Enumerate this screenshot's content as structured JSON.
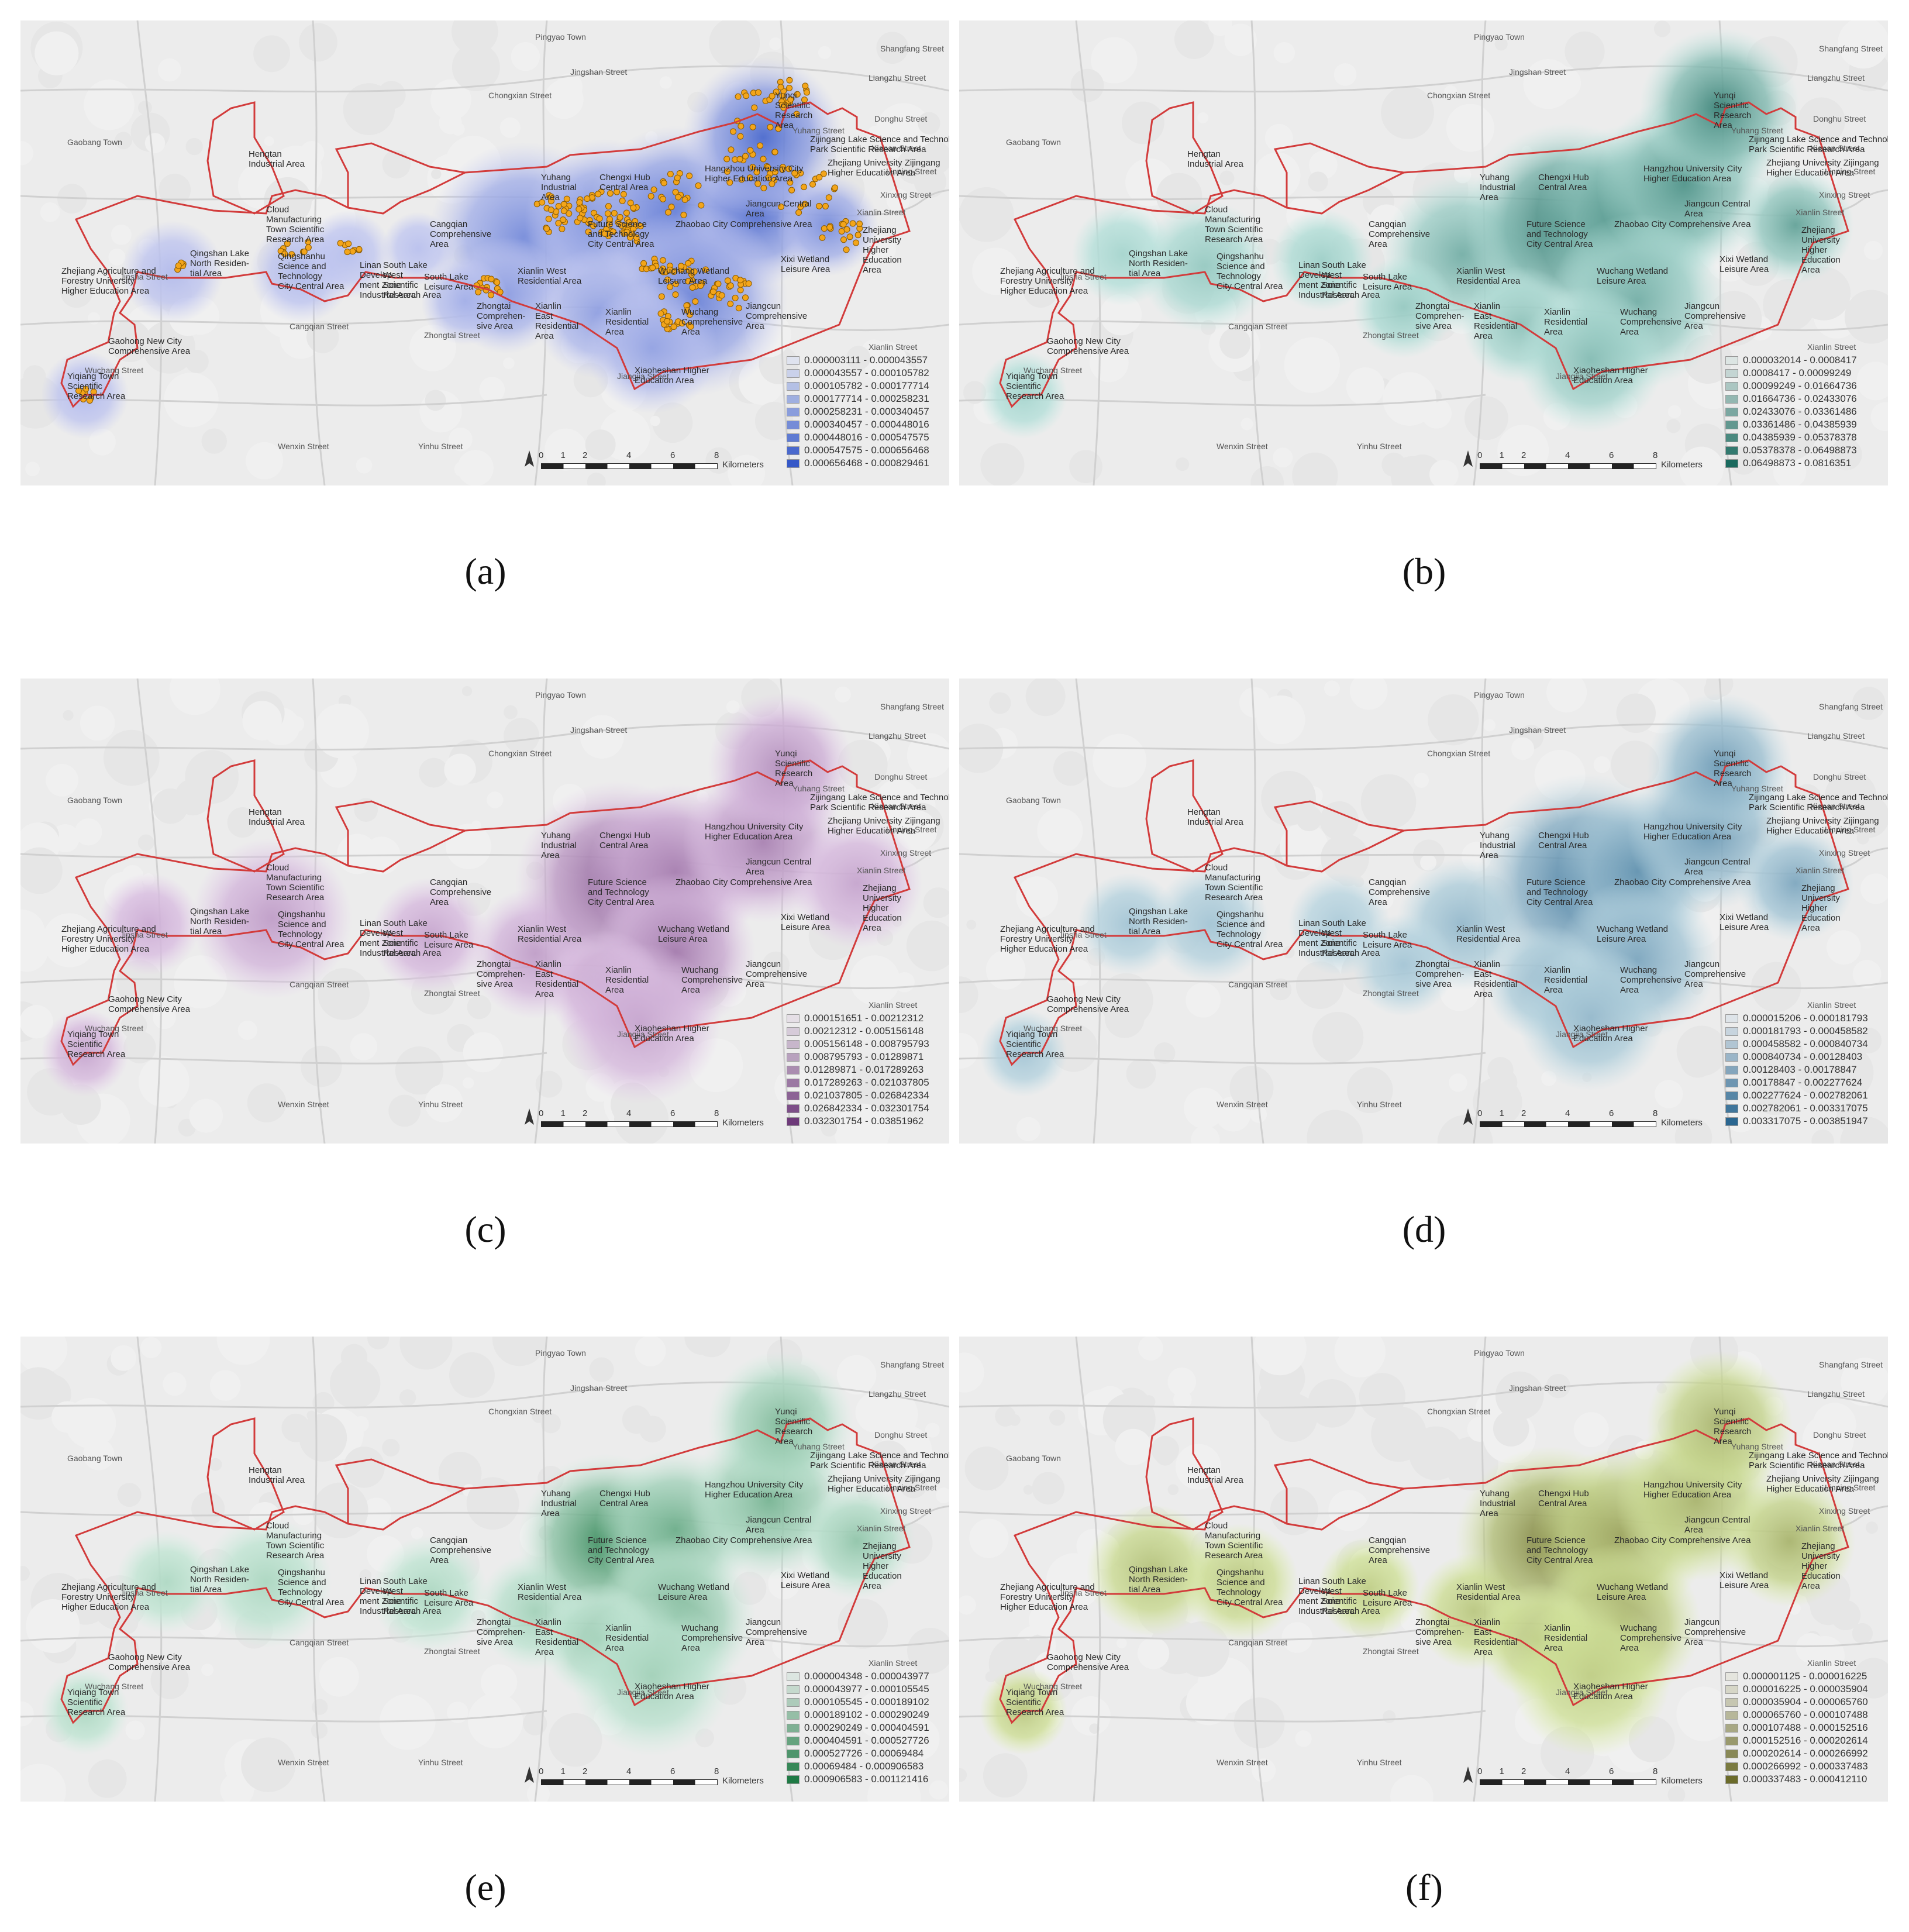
{
  "captions": [
    "(a)",
    "(b)",
    "(c)",
    "(d)",
    "(e)",
    "(f)"
  ],
  "scale_bar": {
    "ticks": [
      "0",
      "1",
      "2",
      "4",
      "6",
      "8"
    ],
    "unit": "Kilometers"
  },
  "place_names": [
    "Pingyao Town",
    "Jingshan Street",
    "Shangfang Street",
    "Gaobang Town",
    "Xianlin Street",
    "Zhongtai Street",
    "Yinhu Street",
    "Xianlin Street",
    "Chongxian Street",
    "Donghu Street",
    "Jinsha Street",
    "Liangzhu Street",
    "Wuchang Street",
    "Cangqian Street",
    "Xianan Street",
    "Jiangjia Street",
    "Xinxing Street",
    "Yuhang Street",
    "Linping Street",
    "Wenxin Street"
  ],
  "area_labels": [
    "Zhejiang Agriculture and\nForestry University\nHigher Education Area",
    "Qingshan Lake\nNorth Residen-\ntial Area",
    "Cloud\nManufacturing\nTown Scientific\nResearch Area",
    "Qingshanhu\nScience and\nTechnology\nCity Central Area",
    "Linan\nDevelop-\nment Zone\nIndustrial Area",
    "Yiqiang Town\nScientific\nResearch Area",
    "Gaohong New City\nComprehensive Area",
    "Hengtan\nIndustrial Area",
    "South Lake\nWest\nScientific\nResearch Area",
    "South Lake\nLeisure Area",
    "Zhongtai\nComprehen-\nsive Area",
    "Cangqian\nComprehensive\nArea",
    "Yuhang\nIndustrial\nArea",
    "Chengxi Hub\nCentral Area",
    "Future Science\nand Technology\nCity Central Area",
    "Zhaobao City Comprehensive Area",
    "Xianlin West\nResidential Area",
    "Xianlin\nEast\nResidential\nArea",
    "Xianlin\nResidential\nArea",
    "Wuchang Wetland\nLeisure Area",
    "Wuchang\nComprehensive\nArea",
    "Jiangcun\nComprehensive\nArea",
    "Xixi Wetland\nLeisure Area",
    "Xiaoheshan Higher\nEducation Area",
    "Hangzhou University City\nHigher Education Area",
    "Jiangcun Central\nArea",
    "Yunqi\nScientific\nResearch\nArea",
    "Zijingang Lake Science and Technology\nPark Scientific Research Area",
    "Zhejiang University Zijingang\nHigher Education Area",
    "Zhejiang\nUniversity\nHigher\nEducation\nArea"
  ],
  "panels": [
    {
      "id": "a",
      "colors": {
        "fill": "#3558c8",
        "halo": "#c9cdf2",
        "poi": "#f3a51a"
      },
      "show_points": true,
      "legend": [
        "0.000003111 - 0.000043557",
        "0.000043557 - 0.000105782",
        "0.000105782 - 0.000177714",
        "0.000177714 - 0.000258231",
        "0.000258231 - 0.000340457",
        "0.000340457 - 0.000448016",
        "0.000448016 - 0.000547575",
        "0.000547575 - 0.000656468",
        "0.000656468 - 0.000829461"
      ]
    },
    {
      "id": "b",
      "colors": {
        "fill": "#1a6a5e",
        "halo": "#bfe8e2"
      },
      "show_points": false,
      "legend": [
        "0.000032014 - 0.0008417",
        "0.0008417 - 0.00099249",
        "0.00099249 - 0.01664736",
        "0.01664736 - 0.02433076",
        "0.02433076 - 0.03361486",
        "0.03361486 - 0.04385939",
        "0.04385939 - 0.05378378",
        "0.05378378 - 0.06498873",
        "0.06498873 - 0.0816351"
      ]
    },
    {
      "id": "c",
      "colors": {
        "fill": "#6e3a7a",
        "halo": "#e3c9ea"
      },
      "show_points": false,
      "legend": [
        "0.000151651 - 0.00212312",
        "0.00212312 - 0.005156148",
        "0.005156148 - 0.008795793",
        "0.008795793 - 0.01289871",
        "0.01289871 - 0.017289263",
        "0.017289263 - 0.021037805",
        "0.021037805 - 0.026842334",
        "0.026842334 - 0.032301754",
        "0.032301754 - 0.03851962"
      ]
    },
    {
      "id": "d",
      "colors": {
        "fill": "#2a6690",
        "halo": "#c3dde6"
      },
      "show_points": false,
      "legend": [
        "0.000015206 - 0.000181793",
        "0.000181793 - 0.000458582",
        "0.000458582 - 0.000840734",
        "0.000840734 - 0.00128403",
        "0.00128403 - 0.00178847",
        "0.00178847 - 0.002277624",
        "0.002277624 - 0.002782061",
        "0.002782061 - 0.003317075",
        "0.003317075 - 0.003851947"
      ]
    },
    {
      "id": "e",
      "colors": {
        "fill": "#1f7a45",
        "halo": "#cfeee0"
      },
      "show_points": false,
      "legend": [
        "0.000004348 - 0.000043977",
        "0.000043977 - 0.000105545",
        "0.000105545 - 0.000189102",
        "0.000189102 - 0.000290249",
        "0.000290249 - 0.000404591",
        "0.000404591 - 0.000527726",
        "0.000527726 - 0.00069484",
        "0.00069484 - 0.000906583",
        "0.000906583 - 0.001121416"
      ]
    },
    {
      "id": "f",
      "colors": {
        "fill": "#6b6b2a",
        "halo": "#dcefa6"
      },
      "show_points": false,
      "legend": [
        "0.000001125 - 0.000016225",
        "0.000016225 - 0.000035904",
        "0.000035904 - 0.000065760",
        "0.000065760 - 0.000107488",
        "0.000107488 - 0.000152516",
        "0.000152516 - 0.000202614",
        "0.000202614 - 0.000266992",
        "0.000266992 - 0.000337483",
        "0.000337483 - 0.000412110"
      ]
    }
  ]
}
